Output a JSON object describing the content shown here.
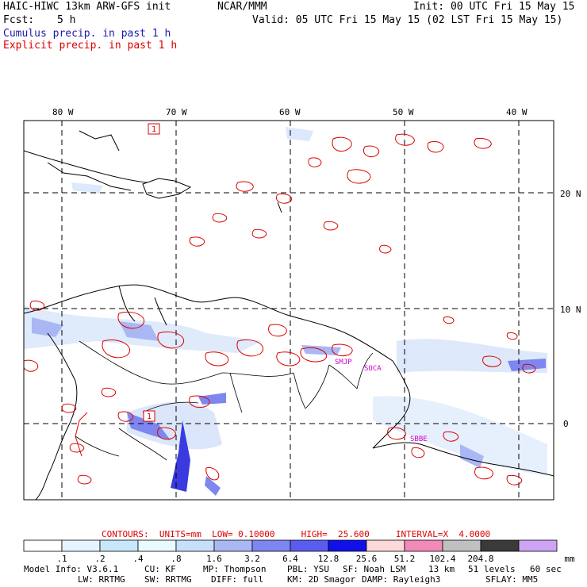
{
  "header": {
    "model": "HAIC-HIWC 13km ARW-GFS init",
    "center": "NCAR/MMM",
    "init": "Init: 00 UTC Fri 15 May 15",
    "fcst_label": "Fcst:",
    "fcst_value": "5 h",
    "valid": "Valid: 05 UTC Fri 15 May 15 (02 LST Fri 15 May 15)",
    "legend_cumulus": "Cumulus precip. in past 1 h",
    "legend_explicit": "Explicit precip. in past 1 h"
  },
  "colors": {
    "cumulus": "#1a1aaa",
    "explicit": "#dd0000",
    "station": "#cc00cc"
  },
  "map": {
    "lon_labels": [
      "80 W",
      "70 W",
      "60 W",
      "50 W",
      "40 W"
    ],
    "lat_labels": [
      "20 N",
      "10 N",
      "0"
    ],
    "max_marker": "1",
    "stations": [
      "SMJP",
      "SOCA",
      "SBBE"
    ]
  },
  "contours": {
    "text": "CONTOURS:  UNITS=mm  LOW= 0.10000     HIGH=  25.600     INTERVAL=X  4.0000"
  },
  "colorbar": {
    "colors": [
      "#ffffff",
      "#e6f4ff",
      "#c9e6fb",
      "#e8fbff",
      "#c7dffa",
      "#a9b8f4",
      "#7e86f0",
      "#5a5cf0",
      "#1010e8",
      "#fdd8d8",
      "#f28ab8",
      "#c0c0c0",
      "#3a3a3a",
      "#cfa4f5"
    ],
    "labels": [
      ".1",
      ".2",
      ".4",
      ".8",
      "1.6",
      "3.2",
      "6.4",
      "12.8",
      "25.6",
      "51.2",
      "102.4",
      "204.8"
    ],
    "units": "mm"
  },
  "model_info": {
    "line1": [
      "Model Info: V3.6.1",
      "CU: KF",
      "MP: Thompson",
      "PBL: YSU",
      "SF: Noah LSM",
      "13 km",
      "51 levels",
      "60 sec"
    ],
    "line2": [
      "LW: RRTMG",
      "SW: RRTMG",
      "DIFF: full",
      "KM: 2D Smagor",
      "DAMP: Rayleigh3",
      "SFLAY: MM5"
    ]
  }
}
